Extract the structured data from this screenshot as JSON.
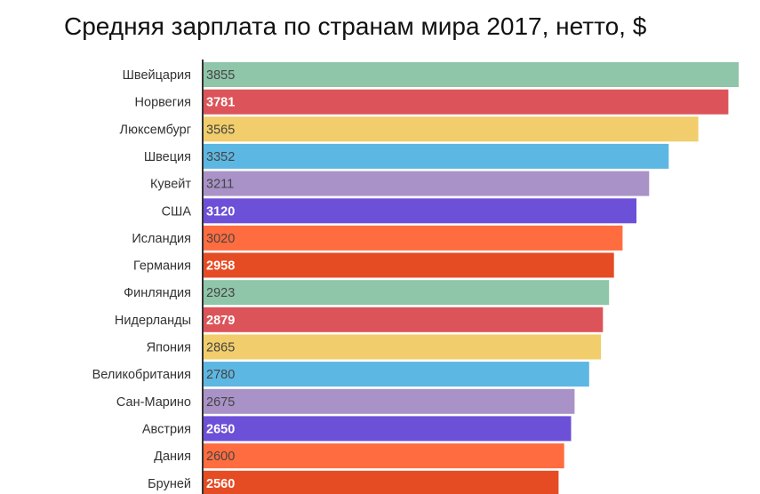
{
  "chart_data": {
    "type": "bar",
    "orientation": "horizontal",
    "title": "Средняя зарплата по странам мира 2017, нетто, $",
    "xlabel": "",
    "ylabel": "",
    "xlim": [
      0,
      3855
    ],
    "grid": false,
    "categories": [
      "Швейцария",
      "Норвегия",
      "Люксембург",
      "Швеция",
      "Кувейт",
      "США",
      "Исландия",
      "Германия",
      "Финляндия",
      "Нидерланды",
      "Япония",
      "Великобритания",
      "Сан-Марино",
      "Австрия",
      "Дания",
      "Бруней"
    ],
    "values": [
      3855,
      3781,
      3565,
      3352,
      3211,
      3120,
      3020,
      2958,
      2923,
      2879,
      2865,
      2780,
      2675,
      2650,
      2600,
      2560
    ],
    "value_labels": [
      "3855",
      "3781",
      "3565",
      "3352",
      "3211",
      "3120",
      "3020",
      "2958",
      "2923",
      "2879",
      "2865",
      "2780",
      "2675",
      "2650",
      "2600",
      "2560"
    ],
    "bar_colors": [
      "#8fc5a8",
      "#dc5459",
      "#f1cd6b",
      "#5db7e3",
      "#a992c7",
      "#6c50d8",
      "#ff6c3f",
      "#e64c24",
      "#8fc5a8",
      "#dc5459",
      "#f1cd6b",
      "#5db7e3",
      "#a992c7",
      "#6c50d8",
      "#ff6c3f",
      "#e64c24"
    ],
    "label_colors": [
      "#444444",
      "#ffffff",
      "#444444",
      "#444444",
      "#444444",
      "#ffffff",
      "#444444",
      "#ffffff",
      "#444444",
      "#ffffff",
      "#444444",
      "#444444",
      "#444444",
      "#ffffff",
      "#444444",
      "#ffffff"
    ]
  }
}
